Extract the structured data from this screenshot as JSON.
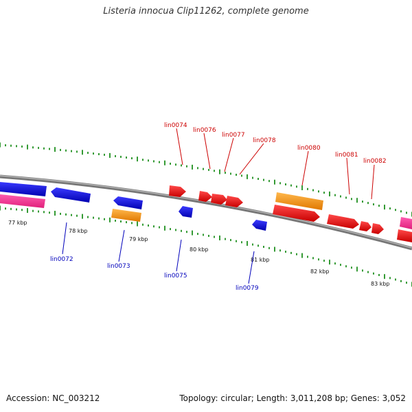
{
  "header": {
    "title": "Listeria innocua Clip11262, complete genome"
  },
  "footer": {
    "accession": "Accession: NC_003212",
    "topology": "Topology: circular; Length: 3,011,208 bp; Genes: 3,052"
  },
  "colors": {
    "forward_gene": "#ff0000",
    "reverse_gene": "#0000ff",
    "rna_orange": "#ff9900",
    "pink": "#ff3399",
    "backbone": "#808080",
    "tick": "#008000",
    "label_red": "#cc0000",
    "label_blue": "#0000bb"
  },
  "scale_labels": [
    "77 kbp",
    "78 kbp",
    "79 kbp",
    "80 kbp",
    "81 kbp",
    "82 kbp",
    "83 kbp"
  ],
  "labels_top": [
    "lin0074",
    "lin0076",
    "lin0077",
    "lin0078",
    "lin0080",
    "lin0081",
    "lin0082"
  ],
  "labels_bottom": [
    "lin0072",
    "lin0073",
    "lin0075",
    "lin0079"
  ]
}
